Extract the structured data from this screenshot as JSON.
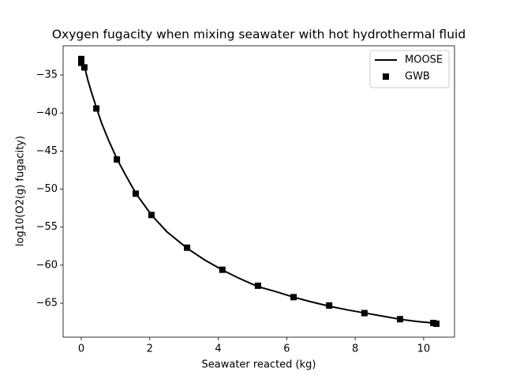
{
  "chart_data": {
    "type": "line",
    "title": "Oxygen fugacity when mixing seawater with hot hydrothermal fluid",
    "xlabel": "Seawater reacted (kg)",
    "ylabel": "log10(O2(g) fugacity)",
    "xlim": [
      -0.53,
      10.9
    ],
    "ylim": [
      -69.46,
      -31.16
    ],
    "xticks": [
      0,
      2,
      4,
      6,
      8,
      10
    ],
    "yticks": [
      {
        "value": -35,
        "label": "−35"
      },
      {
        "value": -40,
        "label": "−40"
      },
      {
        "value": -45,
        "label": "−45"
      },
      {
        "value": -50,
        "label": "−50"
      },
      {
        "value": -55,
        "label": "−55"
      },
      {
        "value": -60,
        "label": "−60"
      },
      {
        "value": -65,
        "label": "−65"
      }
    ],
    "legend": "upper right",
    "grid": false,
    "series": [
      {
        "name": "MOOSE",
        "color": "#000000",
        "style": "line",
        "x": [
          0,
          0.05,
          0.1,
          0.2,
          0.3,
          0.45,
          0.6,
          0.8,
          1.05,
          1.3,
          1.6,
          2.05,
          2.5,
          3.1,
          3.6,
          4.15,
          4.6,
          5.15,
          5.7,
          6.2,
          6.7,
          7.25,
          7.8,
          8.3,
          8.8,
          9.3,
          9.8,
          10.3,
          10.4
        ],
        "values": [
          -33,
          -33.5,
          -34,
          -35.8,
          -37.3,
          -39.4,
          -41.4,
          -43.6,
          -46.1,
          -48.2,
          -50.6,
          -53.4,
          -55.6,
          -57.8,
          -59.3,
          -60.7,
          -61.7,
          -62.8,
          -63.5,
          -64.2,
          -64.8,
          -65.4,
          -65.9,
          -66.3,
          -66.7,
          -67.1,
          -67.4,
          -67.6,
          -67.7
        ]
      },
      {
        "name": "GWB",
        "color": "#000000",
        "style": "square",
        "x": [
          0,
          0,
          0.09,
          0.44,
          1.04,
          1.59,
          2.05,
          3.09,
          4.12,
          5.16,
          6.2,
          7.24,
          8.27,
          9.31,
          10.28,
          10.37
        ],
        "values": [
          -32.9,
          -33.4,
          -34,
          -39.4,
          -46.1,
          -50.6,
          -53.4,
          -57.7,
          -60.6,
          -62.7,
          -64.2,
          -65.3,
          -66.3,
          -67.1,
          -67.6,
          -67.7
        ]
      }
    ]
  }
}
